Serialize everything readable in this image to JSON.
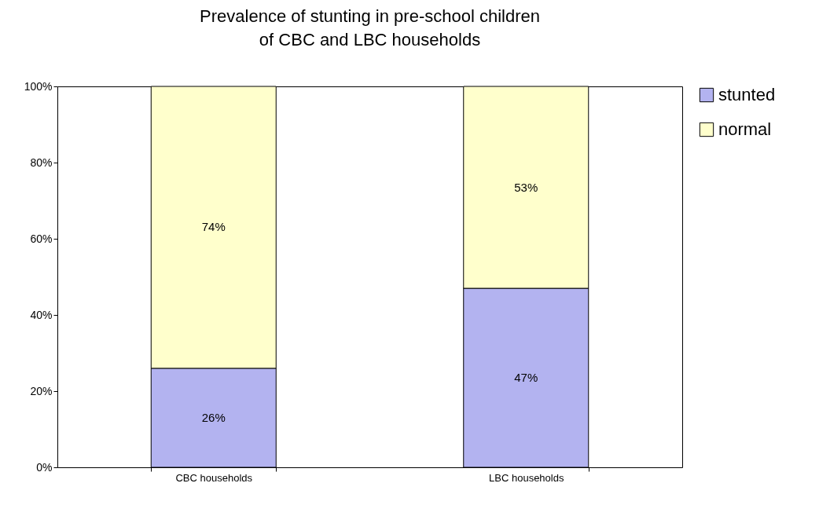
{
  "chart_data": {
    "type": "bar",
    "title": "Prevalence of stunting in pre-school children\nof CBC and LBC households",
    "categories": [
      "CBC households",
      "LBC households"
    ],
    "stacked": true,
    "legend": "right",
    "grid": false,
    "ylim": [
      0,
      100
    ],
    "yticks": [
      {
        "value": 0,
        "label": "0%"
      },
      {
        "value": 20,
        "label": "20%"
      },
      {
        "value": 40,
        "label": "40%"
      },
      {
        "value": 60,
        "label": "60%"
      },
      {
        "value": 80,
        "label": "80%"
      },
      {
        "value": 100,
        "label": "100%"
      }
    ],
    "series": [
      {
        "name": "stunted",
        "color": "#b3b3f0",
        "values": [
          26,
          47
        ],
        "value_labels": [
          "26%",
          "47%"
        ]
      },
      {
        "name": "normal",
        "color": "#ffffcc",
        "values": [
          74,
          53
        ],
        "value_labels": [
          "74%",
          "53%"
        ]
      }
    ]
  }
}
